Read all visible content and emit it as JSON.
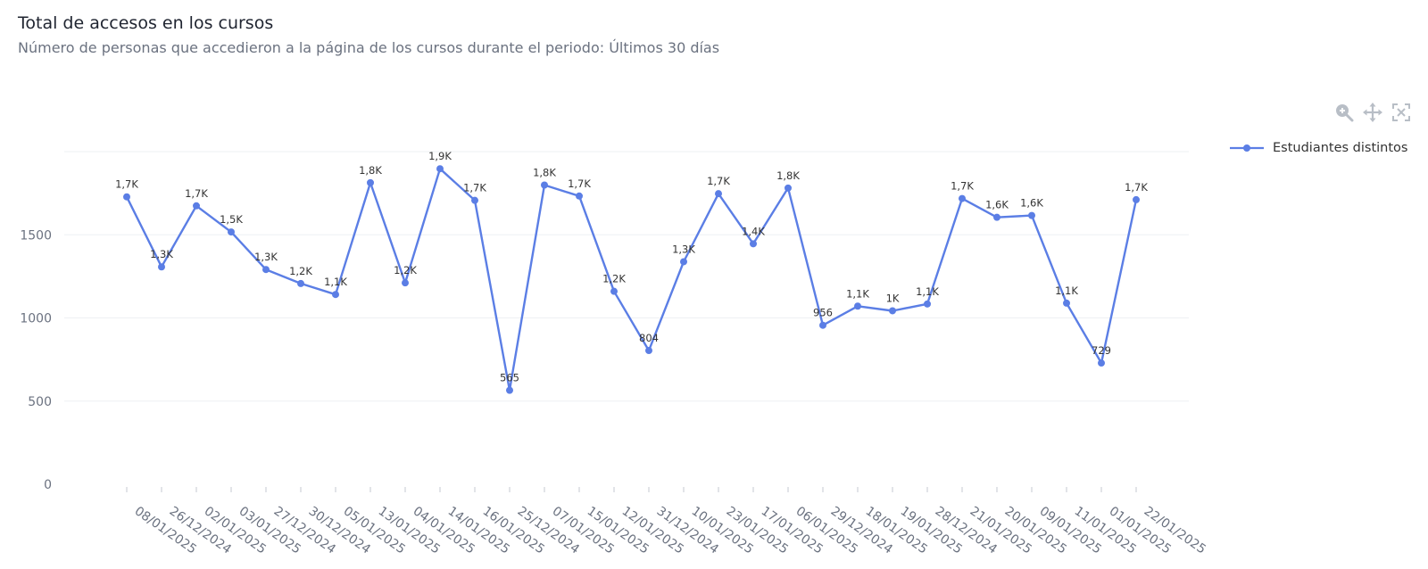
{
  "header": {
    "title": "Total de accesos en los cursos",
    "subtitle": "Número de personas que accedieron a la página de los cursos durante el periodo: Últimos 30 días"
  },
  "toolbar": {
    "icons": [
      "zoom-icon",
      "pan-icon",
      "reset-zoom-icon"
    ],
    "icon_color": "#b8bec6"
  },
  "chart_data": {
    "type": "line",
    "title": "",
    "xlabel": "",
    "ylabel": "",
    "ylim": [
      0,
      2000
    ],
    "yticks": [
      0,
      500,
      1000,
      1500
    ],
    "grid": true,
    "legend_position": "top-right",
    "categories": [
      "08/01/2025",
      "26/12/2024",
      "02/01/2025",
      "03/01/2025",
      "27/12/2024",
      "30/12/2024",
      "05/01/2025",
      "13/01/2025",
      "04/01/2025",
      "14/01/2025",
      "16/01/2025",
      "25/12/2024",
      "07/01/2025",
      "15/01/2025",
      "12/01/2025",
      "31/12/2024",
      "10/01/2025",
      "23/01/2025",
      "17/01/2025",
      "06/01/2025",
      "29/12/2024",
      "18/01/2025",
      "19/01/2025",
      "28/12/2024",
      "21/01/2025",
      "20/01/2025",
      "09/01/2025",
      "11/01/2025",
      "01/01/2025",
      "22/01/2025"
    ],
    "series": [
      {
        "name": "Estudiantes distintos",
        "color": "#5b7ee5",
        "values": [
          1728,
          1307,
          1674,
          1517,
          1291,
          1207,
          1141,
          1813,
          1211,
          1897,
          1707,
          565,
          1799,
          1733,
          1160,
          804,
          1338,
          1747,
          1446,
          1781,
          956,
          1071,
          1043,
          1084,
          1718,
          1605,
          1616,
          1089,
          729,
          1711
        ],
        "labels": [
          "1,7K",
          "1,3K",
          "1,7K",
          "1,5K",
          "1,3K",
          "1,2K",
          "1,1K",
          "1,8K",
          "1,2K",
          "1,9K",
          "1,7K",
          "565",
          "1,8K",
          "1,7K",
          "1,2K",
          "804",
          "1,3K",
          "1,7K",
          "1,4K",
          "1,8K",
          "956",
          "1,1K",
          "1K",
          "1,1K",
          "1,7K",
          "1,6K",
          "1,6K",
          "1,1K",
          "729",
          "1,7K"
        ]
      }
    ]
  }
}
